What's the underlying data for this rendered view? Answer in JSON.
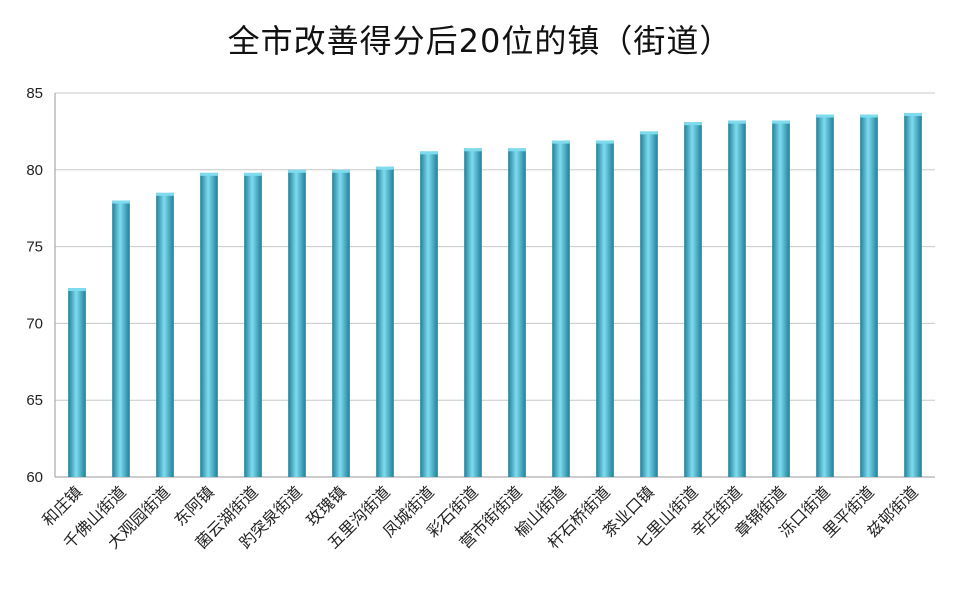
{
  "chart_data": {
    "type": "bar",
    "title": "全市改善得分后20位的镇（街道）",
    "xlabel": "",
    "ylabel": "",
    "ylim": [
      60,
      85
    ],
    "yticks": [
      60,
      65,
      70,
      75,
      80,
      85
    ],
    "grid": true,
    "legend": "none",
    "bar_color": "#2fb0cf",
    "bar_color_dark": "#1e7f99",
    "bar_color_light": "#7fdcef",
    "categories": [
      "和庄镇",
      "千佛山街道",
      "大观园街道",
      "东阿镇",
      "菌云湖街道",
      "趵突泉街道",
      "玫瑰镇",
      "五里沟街道",
      "凤城街道",
      "彩石街道",
      "营市街街道",
      "榆山街道",
      "杆石桥街道",
      "茶业口镇",
      "七里山街道",
      "辛庄街道",
      "章锦街道",
      "泺口街道",
      "里平街道",
      "兹邨街道"
    ],
    "values": [
      72.3,
      78.0,
      78.5,
      79.8,
      79.8,
      80.0,
      80.0,
      80.2,
      81.2,
      81.4,
      81.4,
      81.9,
      81.9,
      82.5,
      83.1,
      83.2,
      83.2,
      83.6,
      83.6,
      83.7
    ]
  }
}
